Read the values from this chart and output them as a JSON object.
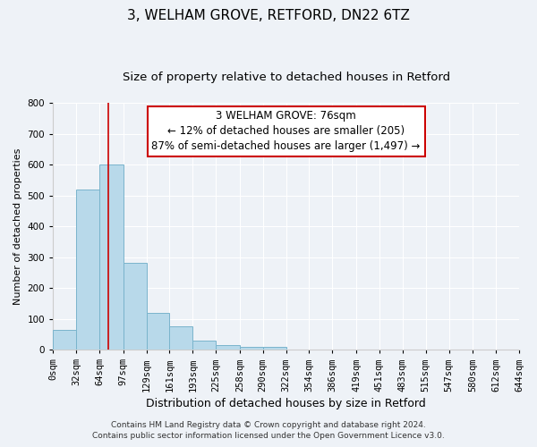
{
  "title": "3, WELHAM GROVE, RETFORD, DN22 6TZ",
  "subtitle": "Size of property relative to detached houses in Retford",
  "xlabel": "Distribution of detached houses by size in Retford",
  "ylabel": "Number of detached properties",
  "footer_lines": [
    "Contains HM Land Registry data © Crown copyright and database right 2024.",
    "Contains public sector information licensed under the Open Government Licence v3.0."
  ],
  "bin_edges": [
    0,
    32,
    64,
    97,
    129,
    161,
    193,
    225,
    258,
    290,
    322,
    354,
    386,
    419,
    451,
    483,
    515,
    547,
    580,
    612,
    644
  ],
  "bar_heights": [
    65,
    520,
    600,
    280,
    120,
    75,
    30,
    15,
    10,
    10,
    0,
    0,
    0,
    0,
    0,
    0,
    0,
    0,
    0,
    0
  ],
  "bar_color": "#b8d9ea",
  "bar_edge_color": "#7ab4cc",
  "property_line_x": 76,
  "property_line_color": "#cc0000",
  "annotation_line1": "3 WELHAM GROVE: 76sqm",
  "annotation_line2": "← 12% of detached houses are smaller (205)",
  "annotation_line3": "87% of semi-detached houses are larger (1,497) →",
  "annotation_box_facecolor": "#ffffff",
  "annotation_box_edgecolor": "#cc0000",
  "ylim": [
    0,
    800
  ],
  "yticks": [
    0,
    100,
    200,
    300,
    400,
    500,
    600,
    700,
    800
  ],
  "title_fontsize": 11,
  "subtitle_fontsize": 9.5,
  "xlabel_fontsize": 9,
  "ylabel_fontsize": 8,
  "tick_fontsize": 7.5,
  "annotation_fontsize": 8.5,
  "footer_fontsize": 6.5,
  "background_color": "#eef2f7",
  "grid_color": "#ffffff",
  "spine_color": "#cccccc"
}
